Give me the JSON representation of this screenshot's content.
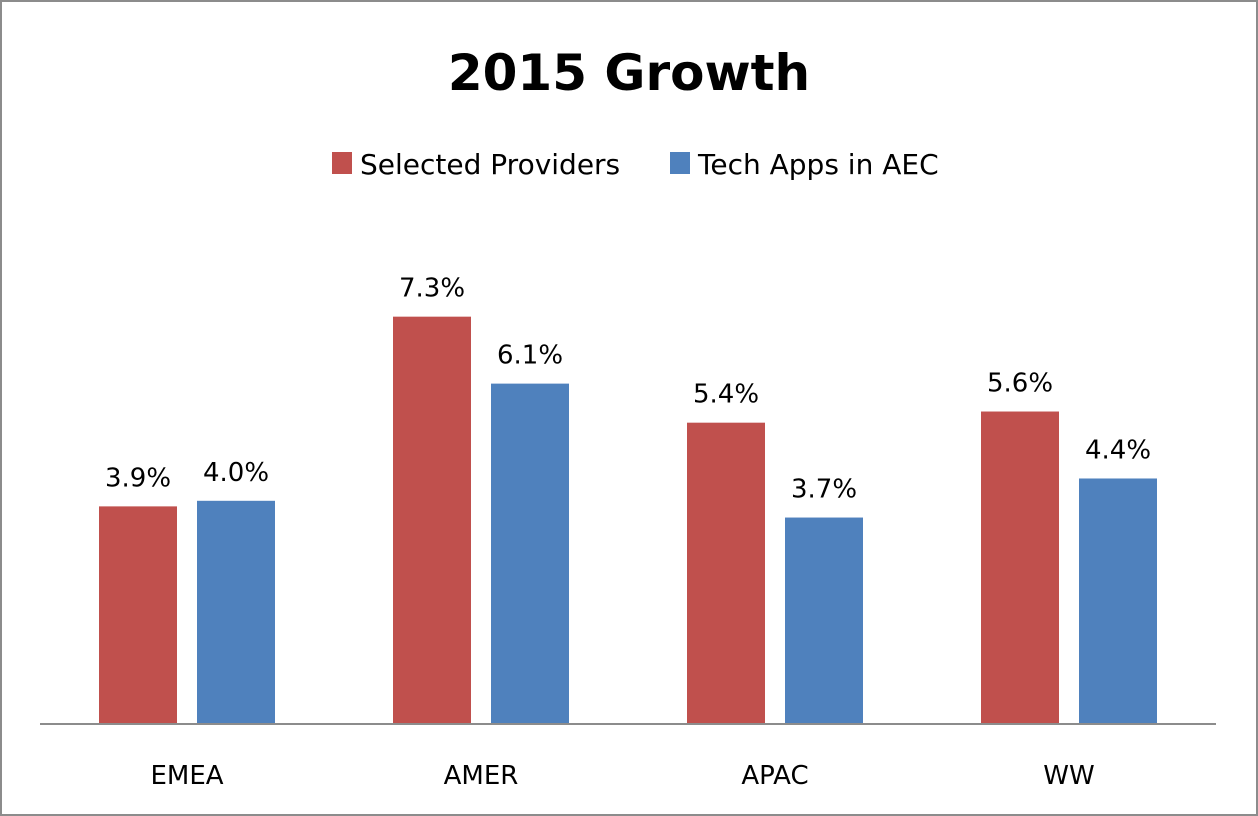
{
  "chart_data": {
    "type": "bar",
    "title": "2015 Growth",
    "xlabel": "",
    "ylabel": "",
    "ylim": [
      0,
      8.0
    ],
    "grid": false,
    "legend_position": "top",
    "categories": [
      "EMEA",
      "AMER",
      "APAC",
      "WW"
    ],
    "series": [
      {
        "name": "Selected Providers",
        "color": "#c0504d",
        "values": [
          3.9,
          7.3,
          5.4,
          5.6
        ],
        "labels": [
          "3.9%",
          "7.3%",
          "5.4%",
          "5.6%"
        ]
      },
      {
        "name": "Tech Apps in AEC",
        "color": "#4f81bd",
        "values": [
          4.0,
          6.1,
          3.7,
          4.4
        ],
        "labels": [
          "4.0%",
          "6.1%",
          "3.7%",
          "4.4%"
        ]
      }
    ]
  }
}
